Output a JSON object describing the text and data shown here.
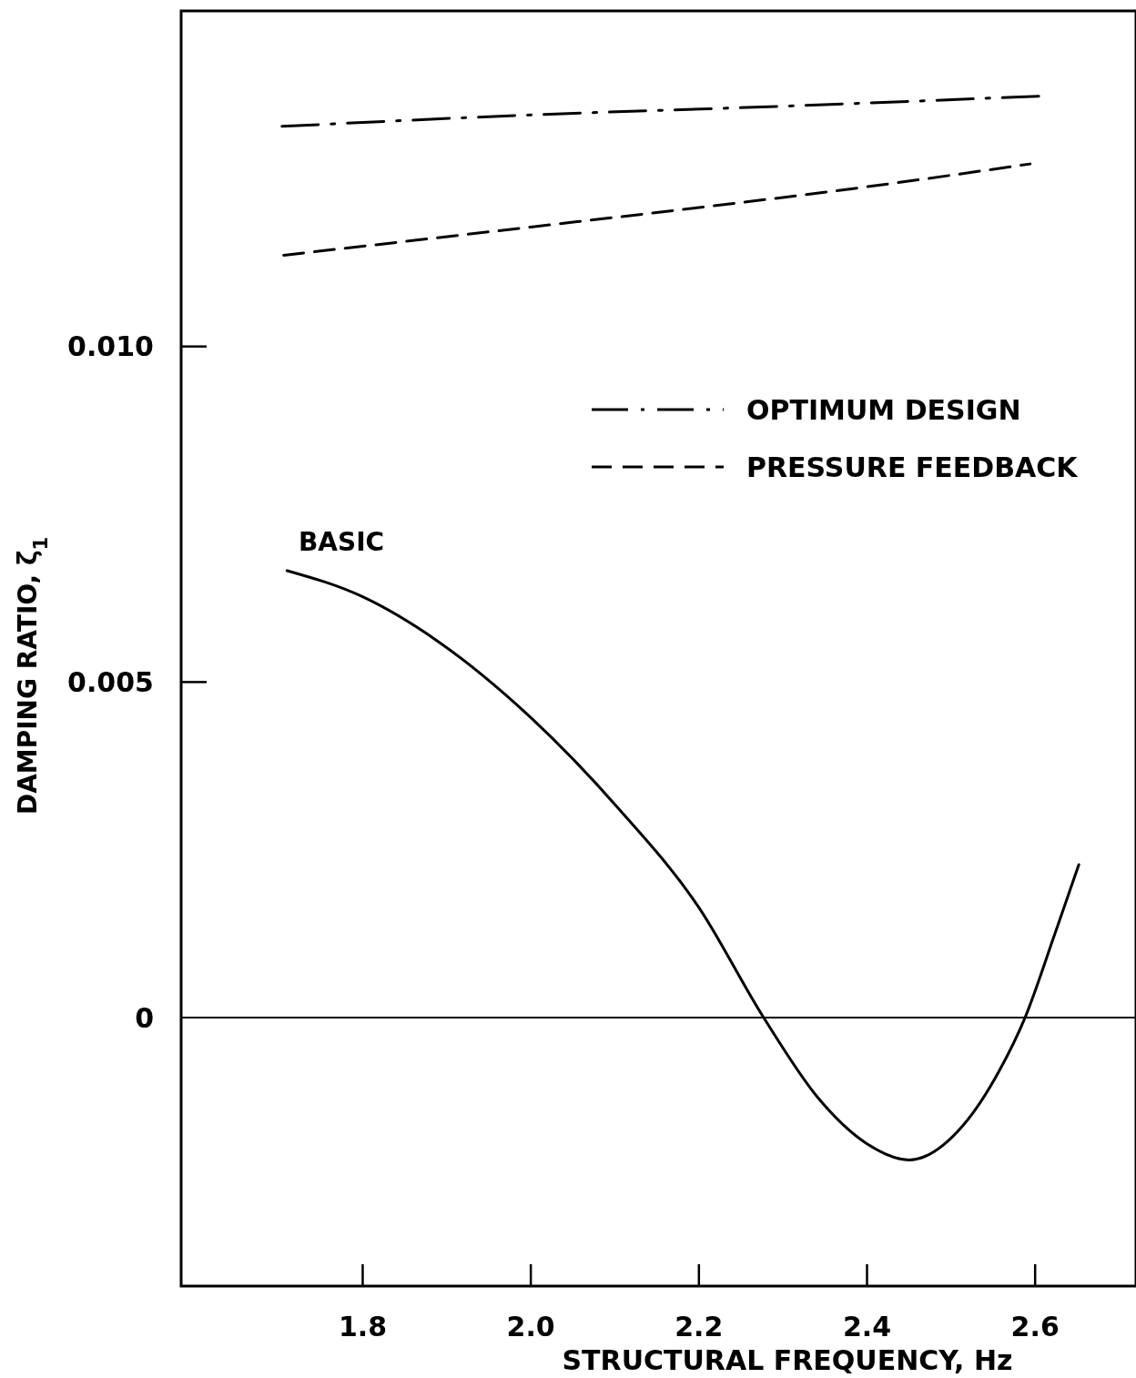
{
  "chart_data": {
    "type": "line",
    "xlabel": "STRUCTURAL FREQUENCY, Hz",
    "ylabel": "DAMPING RATIO, ζ$_{1}$",
    "xlim": [
      1.584,
      2.72
    ],
    "ylim": [
      -0.004,
      0.015
    ],
    "xticks": [
      {
        "value": 1.8,
        "label": "1.8"
      },
      {
        "value": 2.0,
        "label": "2.0"
      },
      {
        "value": 2.2,
        "label": "2.2"
      },
      {
        "value": 2.4,
        "label": "2.4"
      },
      {
        "value": 2.6,
        "label": "2.6"
      }
    ],
    "yticks": [
      {
        "value": 0,
        "label": "0"
      },
      {
        "value": 0.005,
        "label": "0.005"
      },
      {
        "value": 0.01,
        "label": "0.010"
      }
    ],
    "grid": false,
    "legend": "top right",
    "marker": "none",
    "ref_lines": [
      {
        "axis": "y",
        "value": 0,
        "color": "#000000"
      }
    ],
    "annotations": [
      "BASIC"
    ],
    "series": [
      {
        "name": "OPTIMUM DESIGN",
        "color": "#000000",
        "line_style": "dashdot",
        "x": [
          1.704,
          2.0,
          2.3,
          2.605
        ],
        "values": [
          0.01328,
          0.01345,
          0.01358,
          0.01373
        ]
      },
      {
        "name": "PRESSURE FEEDBACK",
        "color": "#000000",
        "line_style": "dashed",
        "x": [
          1.706,
          2.0,
          2.2,
          2.4,
          2.594
        ],
        "values": [
          0.01136,
          0.01178,
          0.01207,
          0.01238,
          0.01272
        ]
      },
      {
        "color": "#000000",
        "line_style": "solid",
        "x": [
          1.71,
          1.8,
          1.888,
          2.0,
          2.104,
          2.2,
          2.277,
          2.342,
          2.4,
          2.45,
          2.514,
          2.557,
          2.588,
          2.623,
          2.652
        ],
        "values": [
          0.00666,
          0.00627,
          0.00562,
          0.00447,
          0.00312,
          0.00164,
          0,
          -0.0012,
          -0.00188,
          -0.00212,
          -0.00161,
          -0.0008,
          0,
          0.00123,
          0.00228
        ]
      }
    ]
  }
}
